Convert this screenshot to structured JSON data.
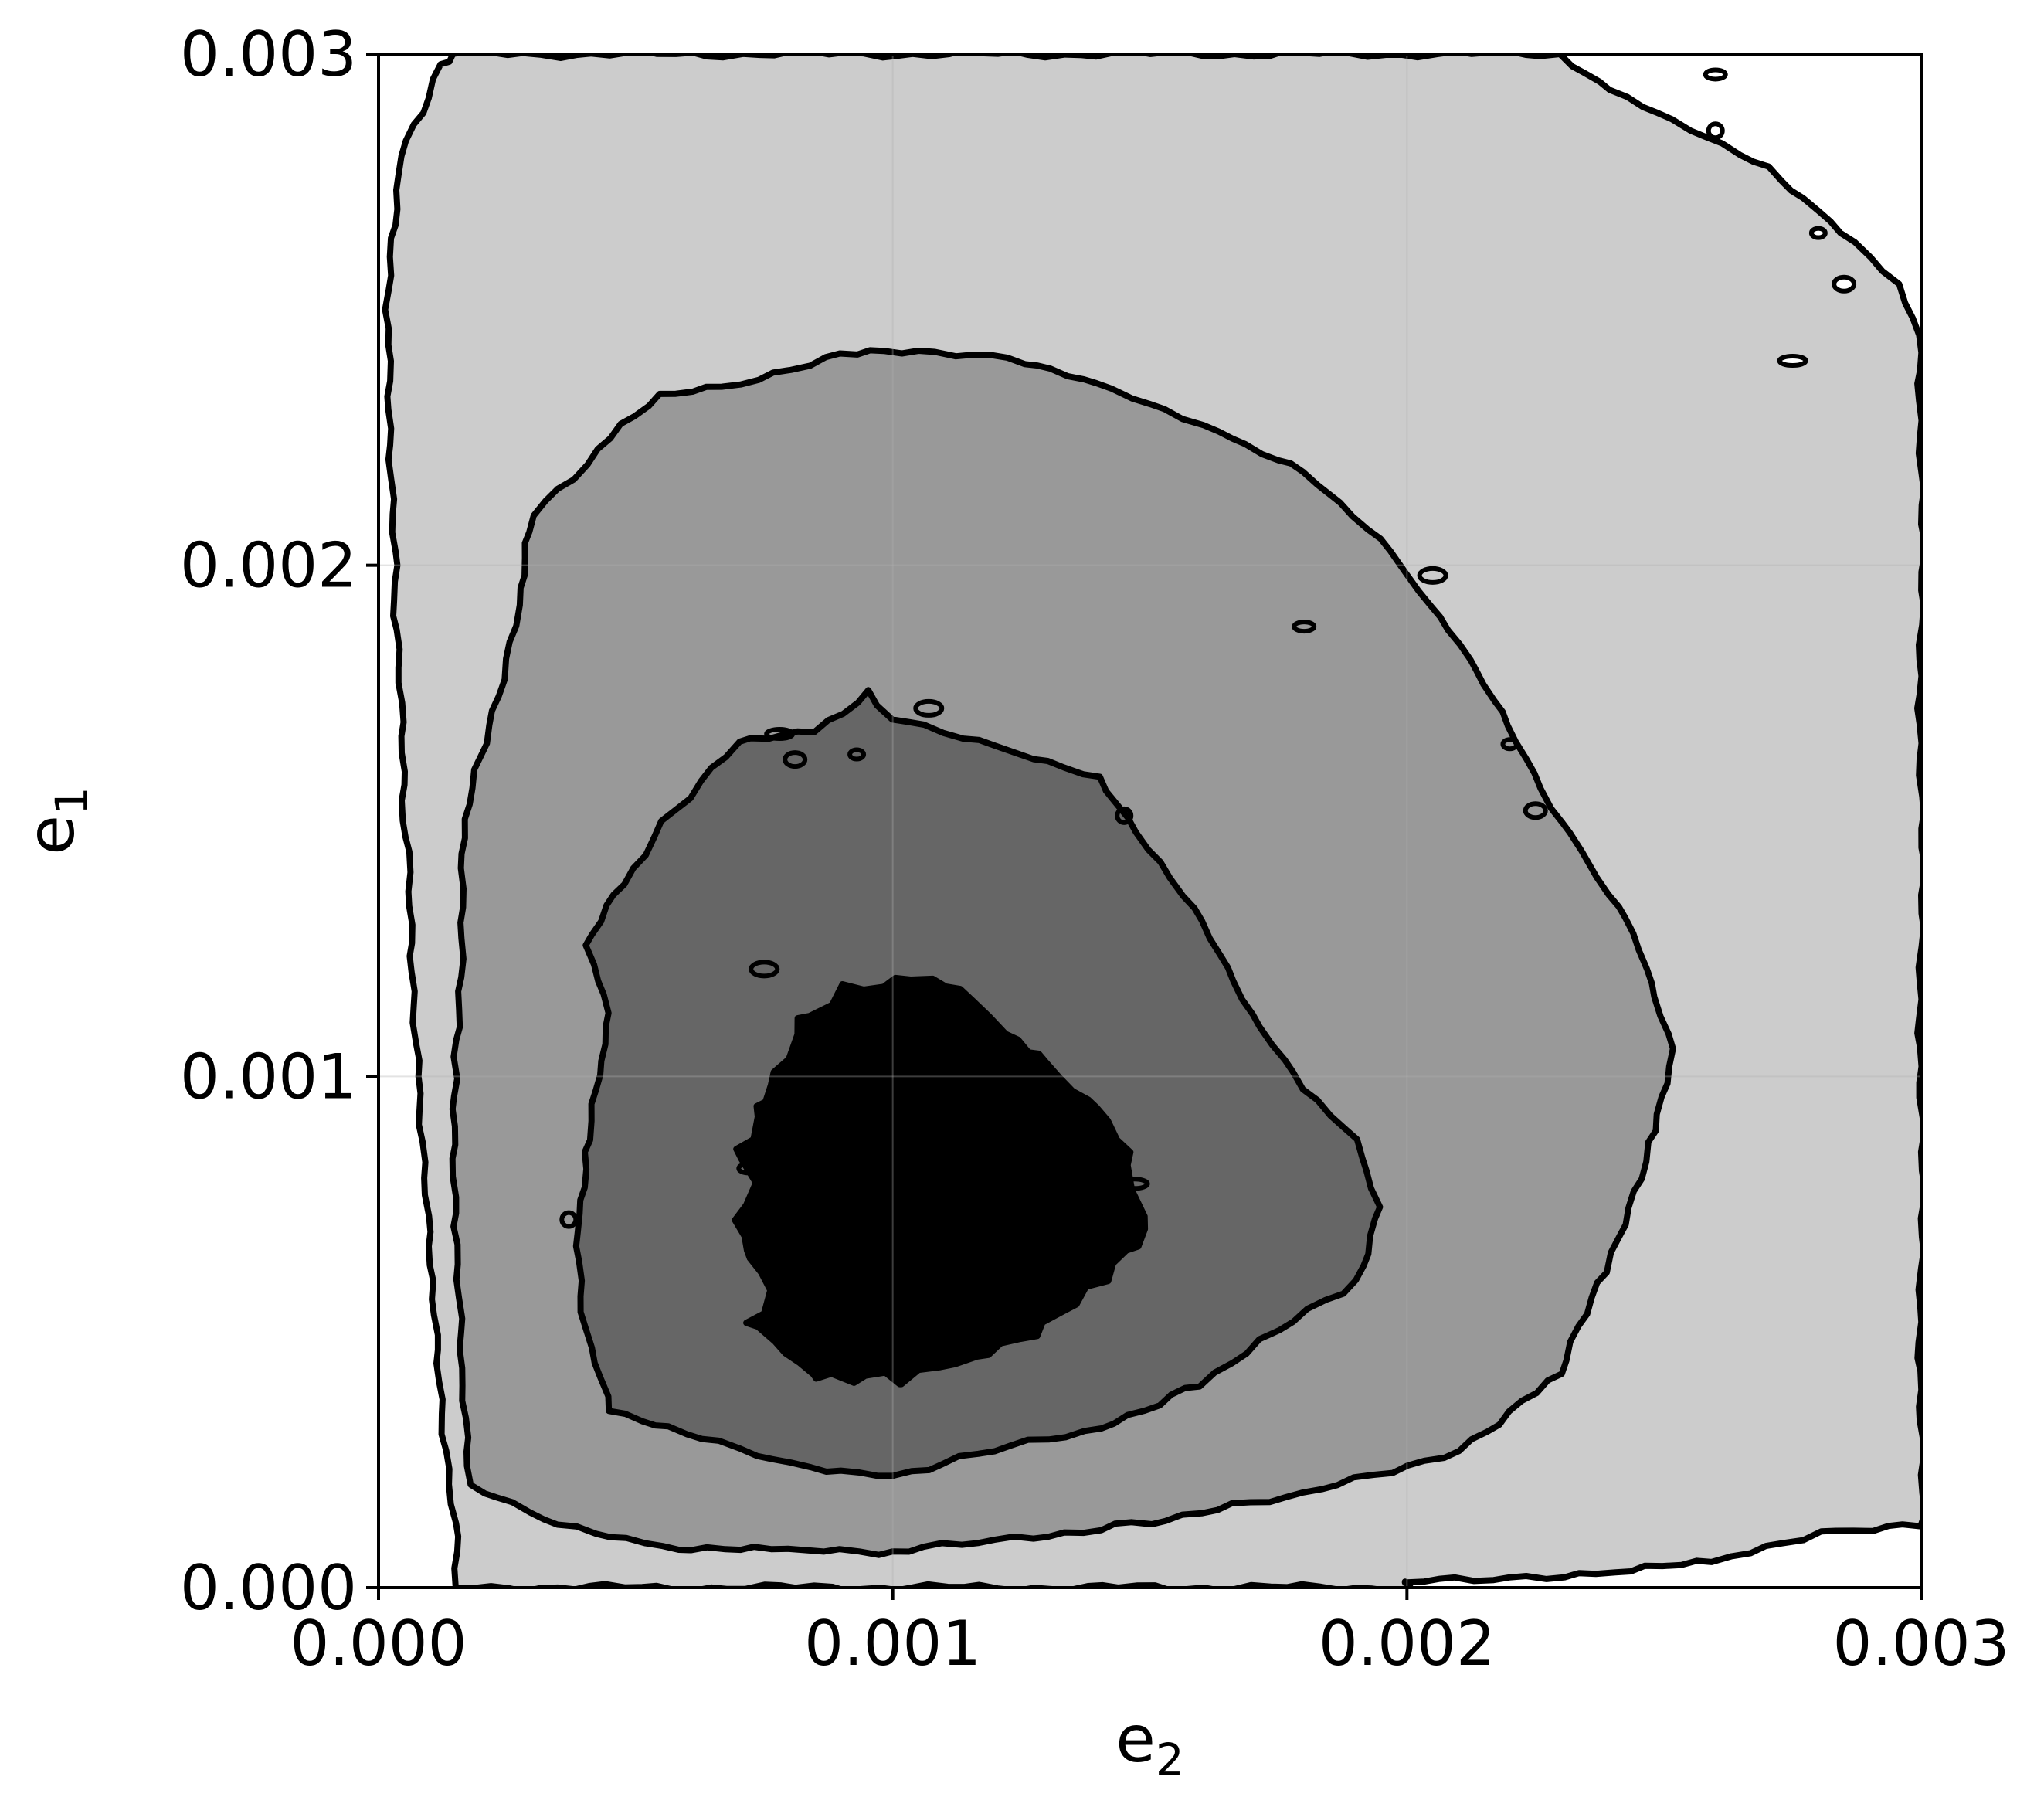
{
  "chart_data": {
    "type": "contour",
    "title": "",
    "xlabel": {
      "base": "e",
      "subscript": "2"
    },
    "ylabel": {
      "base": "e",
      "subscript": "1"
    },
    "xlim": [
      0.0,
      0.003
    ],
    "ylim": [
      0.0,
      0.003
    ],
    "xticks": [
      0.0,
      0.001,
      0.002,
      0.003
    ],
    "yticks": [
      0.0,
      0.001,
      0.002,
      0.003
    ],
    "xtick_labels": [
      "0.000",
      "0.001",
      "0.002",
      "0.003"
    ],
    "ytick_labels": [
      "0.000",
      "0.001",
      "0.002",
      "0.003"
    ],
    "grid": true,
    "legend": "none",
    "mode": {
      "x": 0.00105,
      "y": 0.00085
    },
    "levels": [
      {
        "name": "outermost",
        "fill": "#cccccc",
        "boundary": [
          [
            0.00015,
            0.0
          ],
          [
            0.00015,
            0.0001
          ],
          [
            0.00013,
            0.0003
          ],
          [
            0.0001,
            0.0006
          ],
          [
            8e-05,
            0.001
          ],
          [
            5e-05,
            0.0015
          ],
          [
            3e-05,
            0.002
          ],
          [
            2e-05,
            0.0025
          ],
          [
            4e-05,
            0.0028
          ],
          [
            0.00012,
            0.00298
          ],
          [
            0.00015,
            0.003
          ],
          [
            0.00229,
            0.003
          ],
          [
            0.0024,
            0.00293
          ],
          [
            0.00255,
            0.00285
          ],
          [
            0.0027,
            0.00278
          ],
          [
            0.00285,
            0.00265
          ],
          [
            0.00295,
            0.00255
          ],
          [
            0.003,
            0.00245
          ],
          [
            0.003,
            0.00012
          ],
          [
            0.0028,
            0.00011
          ],
          [
            0.0026,
            5e-05
          ],
          [
            0.0024,
            3e-05
          ],
          [
            0.0022,
            2e-05
          ],
          [
            0.002,
            1e-05
          ],
          [
            0.002,
            0.0
          ]
        ]
      },
      {
        "name": "middle",
        "fill": "#999999",
        "boundary": [
          [
            0.001,
            7e-05
          ],
          [
            0.0012,
            9e-05
          ],
          [
            0.0015,
            0.00013
          ],
          [
            0.0018,
            0.00018
          ],
          [
            0.0021,
            0.00027
          ],
          [
            0.0023,
            0.00042
          ],
          [
            0.0024,
            0.00065
          ],
          [
            0.00248,
            0.0009
          ],
          [
            0.00252,
            0.00105
          ],
          [
            0.00244,
            0.00128
          ],
          [
            0.0023,
            0.0015
          ],
          [
            0.0022,
            0.00168
          ],
          [
            0.0021,
            0.00185
          ],
          [
            0.00195,
            0.00205
          ],
          [
            0.0018,
            0.00218
          ],
          [
            0.0016,
            0.00228
          ],
          [
            0.0014,
            0.00235
          ],
          [
            0.00122,
            0.00241
          ],
          [
            0.00105,
            0.00242
          ],
          [
            0.0009,
            0.00241
          ],
          [
            0.0007,
            0.00236
          ],
          [
            0.00055,
            0.00233
          ],
          [
            0.00045,
            0.00225
          ],
          [
            0.0003,
            0.0021
          ],
          [
            0.00028,
            0.00195
          ],
          [
            0.00023,
            0.00175
          ],
          [
            0.00017,
            0.0015
          ],
          [
            0.00016,
            0.0013
          ],
          [
            0.00015,
            0.001
          ],
          [
            0.00015,
            0.0007
          ],
          [
            0.00016,
            0.0004
          ],
          [
            0.00018,
            0.0002
          ],
          [
            0.00035,
            0.00012
          ],
          [
            0.00058,
            8e-05
          ],
          [
            0.0008,
            7e-05
          ]
        ]
      },
      {
        "name": "inner",
        "fill": "#666666",
        "boundary": [
          [
            0.001,
            0.00022
          ],
          [
            0.0012,
            0.00027
          ],
          [
            0.00137,
            0.0003
          ],
          [
            0.0016,
            0.0004
          ],
          [
            0.00175,
            0.0005
          ],
          [
            0.0019,
            0.0006
          ],
          [
            0.00195,
            0.00075
          ],
          [
            0.0019,
            0.00087
          ],
          [
            0.0018,
            0.00098
          ],
          [
            0.0017,
            0.00112
          ],
          [
            0.0016,
            0.0013
          ],
          [
            0.0015,
            0.00145
          ],
          [
            0.0014,
            0.00158
          ],
          [
            0.0012,
            0.00165
          ],
          [
            0.001,
            0.0017
          ],
          [
            0.00095,
            0.00175
          ],
          [
            0.00085,
            0.00168
          ],
          [
            0.0007,
            0.00165
          ],
          [
            0.00055,
            0.0015
          ],
          [
            0.00048,
            0.00138
          ],
          [
            0.0004,
            0.00125
          ],
          [
            0.00045,
            0.00113
          ],
          [
            0.00043,
            0.001
          ],
          [
            0.0004,
            0.00085
          ],
          [
            0.00039,
            0.0007
          ],
          [
            0.0004,
            0.0005
          ],
          [
            0.00045,
            0.00035
          ],
          [
            0.0006,
            0.0003
          ],
          [
            0.0008,
            0.00024
          ]
        ]
      },
      {
        "name": "core",
        "fill": "#000000",
        "boundary": [
          [
            0.00092,
            0.0004
          ],
          [
            0.00098,
            0.00042
          ],
          [
            0.00103,
            0.0004
          ],
          [
            0.00115,
            0.00045
          ],
          [
            0.0013,
            0.00052
          ],
          [
            0.00142,
            0.0006
          ],
          [
            0.00148,
            0.0007
          ],
          [
            0.00148,
            0.00078
          ],
          [
            0.00145,
            0.00085
          ],
          [
            0.0014,
            0.00094
          ],
          [
            0.00133,
            0.001
          ],
          [
            0.00123,
            0.00107
          ],
          [
            0.00117,
            0.00115
          ],
          [
            0.00107,
            0.00119
          ],
          [
            0.0009,
            0.00118
          ],
          [
            0.00085,
            0.00112
          ],
          [
            0.0008,
            0.00108
          ],
          [
            0.00078,
            0.00101
          ],
          [
            0.00075,
            0.00095
          ],
          [
            0.00073,
            0.00092
          ],
          [
            0.00071,
            0.00086
          ],
          [
            0.00072,
            0.00079
          ],
          [
            0.0007,
            0.00072
          ],
          [
            0.00072,
            0.00066
          ],
          [
            0.00075,
            0.00058
          ],
          [
            0.00073,
            0.00052
          ],
          [
            0.00076,
            0.00048
          ],
          [
            0.00082,
            0.00044
          ],
          [
            0.00086,
            0.00041
          ]
        ]
      }
    ],
    "islands": [
      [
        0.0028,
        0.00265
      ],
      [
        0.00285,
        0.00255
      ],
      [
        0.00275,
        0.0024
      ],
      [
        0.0026,
        0.00285
      ],
      [
        0.0026,
        0.00296
      ],
      [
        0.00107,
        0.00172
      ],
      [
        0.00093,
        0.00163
      ],
      [
        0.00081,
        0.00162
      ],
      [
        0.00078,
        0.00167
      ],
      [
        0.00145,
        0.00151
      ],
      [
        0.0018,
        0.00188
      ],
      [
        0.00205,
        0.00198
      ],
      [
        0.0022,
        0.00165
      ],
      [
        0.00225,
        0.00152
      ],
      [
        0.00147,
        0.00079
      ],
      [
        0.00037,
        0.00072
      ],
      [
        0.00072,
        0.00082
      ],
      [
        0.00075,
        0.00121
      ]
    ]
  }
}
